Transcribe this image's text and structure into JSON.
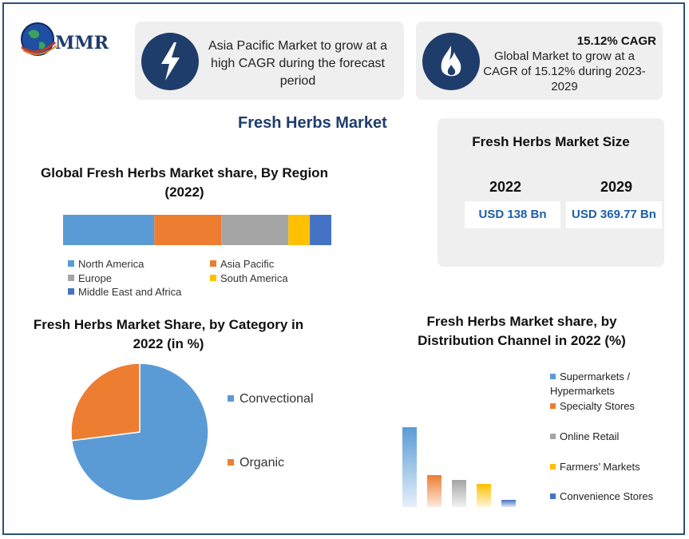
{
  "logo": {
    "text": "MMR"
  },
  "info_cards": [
    {
      "icon": "lightning-icon",
      "heading": "",
      "text": "Asia Pacific Market to grow at a high CAGR during  the forecast period"
    },
    {
      "icon": "flame-icon",
      "heading": "15.12% CAGR",
      "text": "Global Market to grow at a CAGR of 15.12% during 2023-2029"
    }
  ],
  "main_title": "Fresh Herbs Market",
  "market_size": {
    "title": "Fresh Herbs Market Size",
    "years": [
      {
        "year": "2022",
        "value": "USD 138 Bn"
      },
      {
        "year": "2029",
        "value": "USD 369.77 Bn"
      }
    ]
  },
  "colors": {
    "north_america": "#5b9bd5",
    "asia_pacific": "#ed7d31",
    "europe": "#a5a5a5",
    "south_america": "#ffc000",
    "mea": "#4472c4",
    "navy": "#1f3d6b"
  },
  "chart_data": [
    {
      "type": "bar",
      "stacked": true,
      "orientation": "horizontal",
      "title": "Global Fresh Herbs Market share, By Region (2022)",
      "series": [
        {
          "name": "North America",
          "value": 34,
          "color": "#5b9bd5"
        },
        {
          "name": "Asia Pacific",
          "value": 25,
          "color": "#ed7d31"
        },
        {
          "name": "Europe",
          "value": 25,
          "color": "#a5a5a5"
        },
        {
          "name": "South America",
          "value": 8,
          "color": "#ffc000"
        },
        {
          "name": "Middle East and Africa",
          "value": 8,
          "color": "#4472c4"
        }
      ],
      "legend_position": "bottom"
    },
    {
      "type": "pie",
      "title": "Fresh Herbs Market Share, by Category in 2022 (in %)",
      "slices": [
        {
          "name": "Convectional",
          "value": 73,
          "color": "#5b9bd5"
        },
        {
          "name": "Organic",
          "value": 27,
          "color": "#ed7d31"
        }
      ],
      "legend_position": "right"
    },
    {
      "type": "bar",
      "title": "Fresh Herbs Market share, by Distribution Channel in 2022 (%)",
      "categories": [
        "Supermarkets / Hypermarkets",
        "Specialty Stores",
        "Online Retail",
        "Farmers’ Markets",
        "Convenience Stores"
      ],
      "values": [
        100,
        40,
        34,
        29,
        9
      ],
      "colors": [
        "#5b9bd5",
        "#ed7d31",
        "#a5a5a5",
        "#ffc000",
        "#4472c4"
      ],
      "legend_position": "right"
    }
  ]
}
